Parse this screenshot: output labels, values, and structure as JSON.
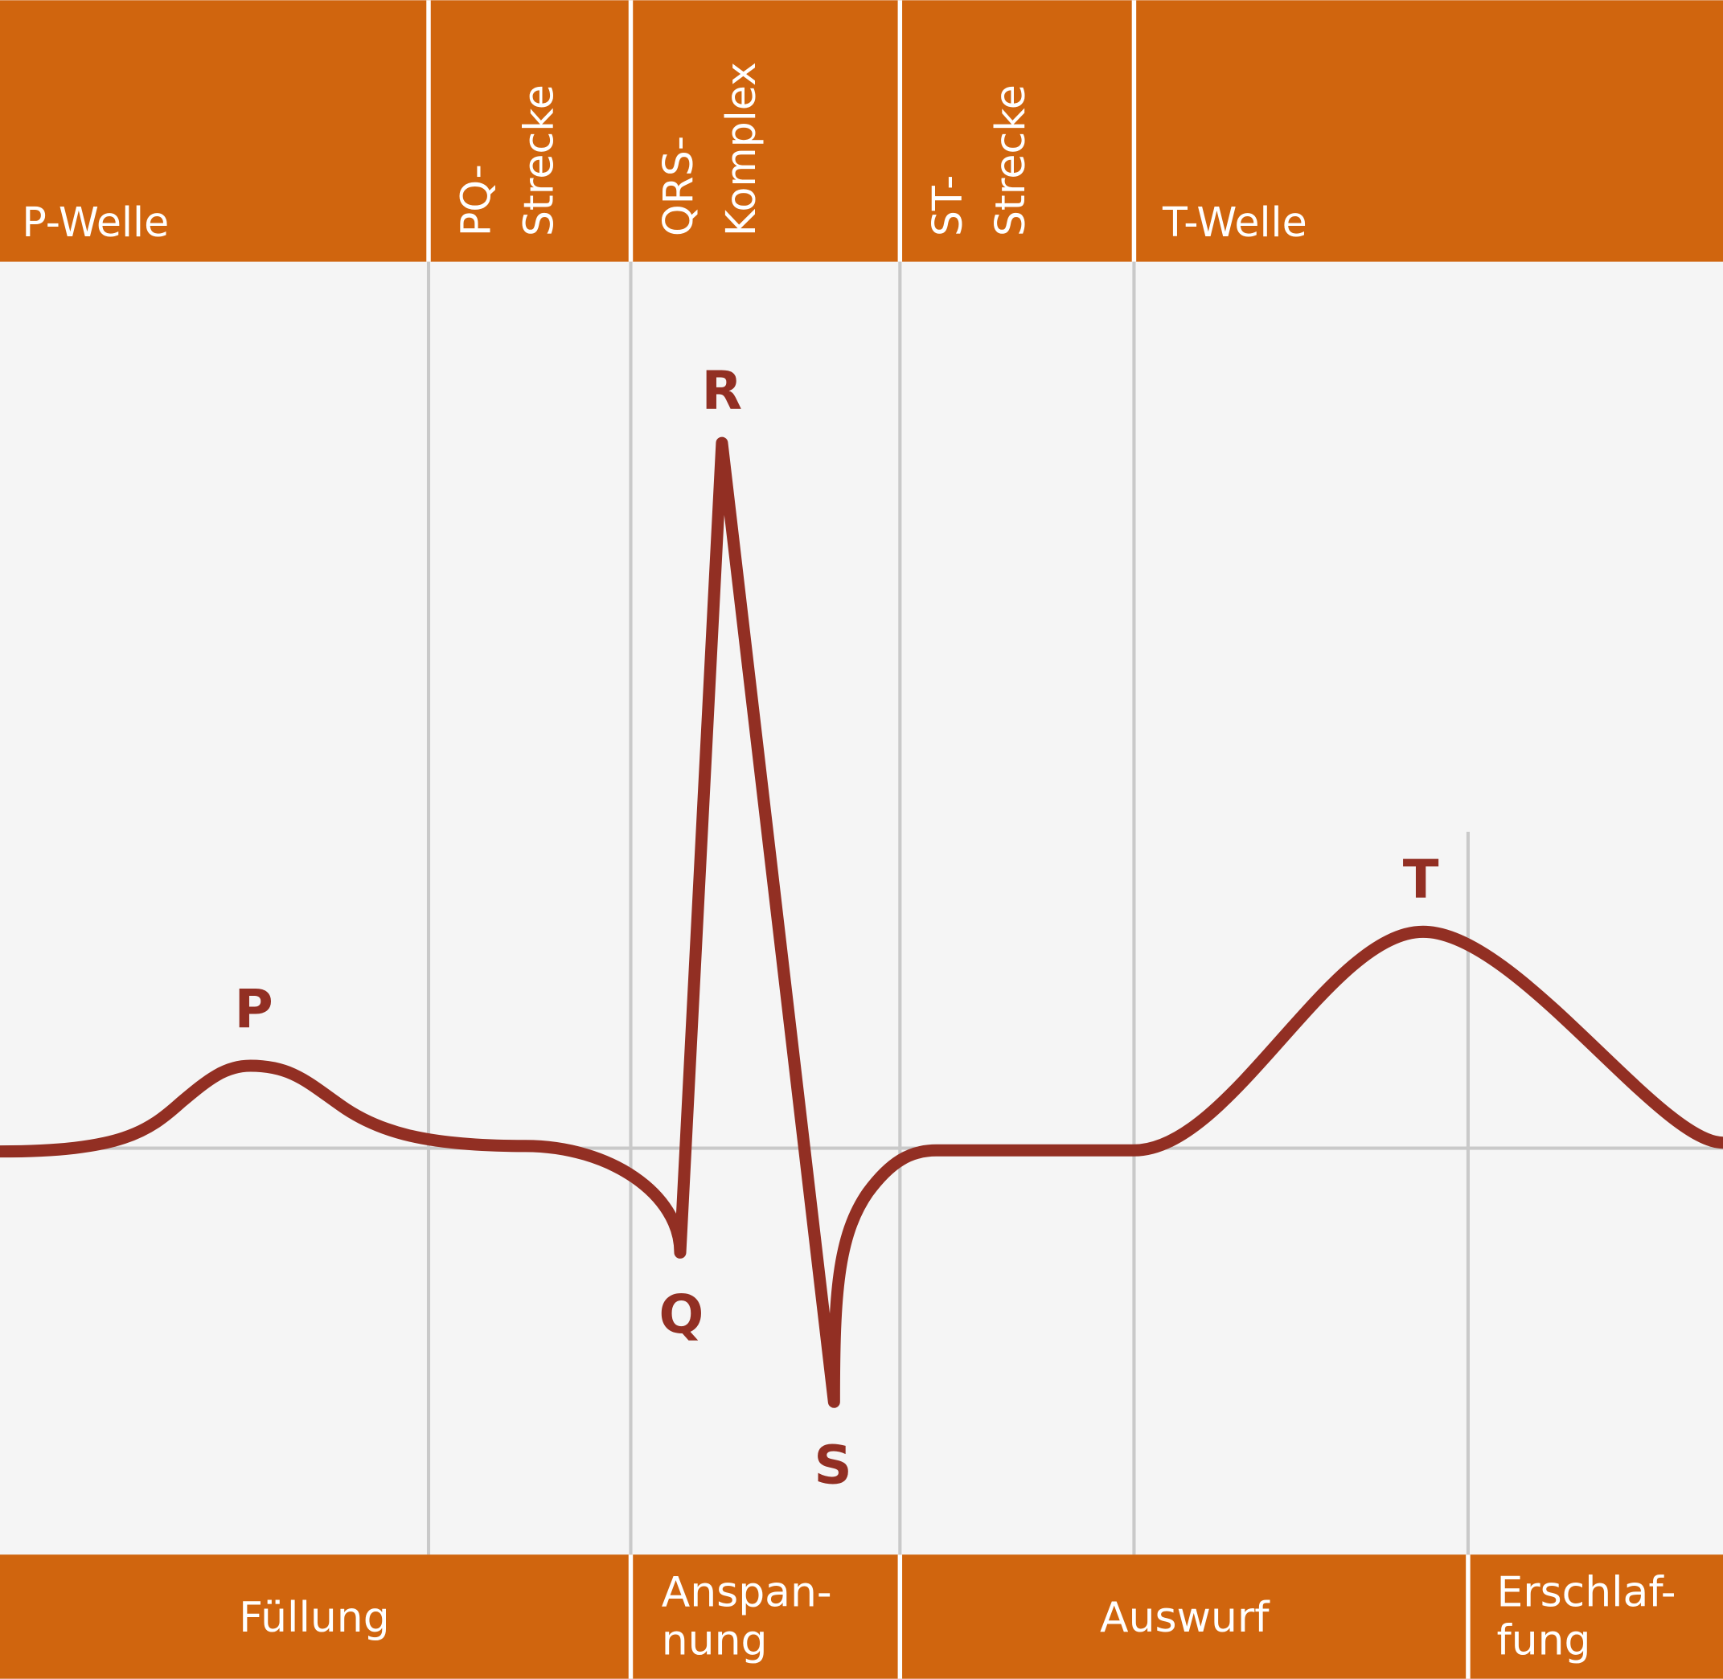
{
  "colors": {
    "band": "#D0650E",
    "curve": "#922F23",
    "background": "#F5F5F5",
    "grid": "#C9C9C9",
    "text_on_band": "#FFFFFF"
  },
  "header": {
    "p_welle": "P-Welle",
    "pq_line1": "PQ-",
    "pq_line2": "Strecke",
    "qrs_line1": "QRS-",
    "qrs_line2": "Komplex",
    "st_line1": "ST-",
    "st_line2": "Strecke",
    "t_welle": "T-Welle"
  },
  "waves": {
    "p": "P",
    "q": "Q",
    "r": "R",
    "s": "S",
    "t": "T"
  },
  "footer": {
    "fuellung": "Füllung",
    "anspannung_line1": "Anspan-",
    "anspannung_line2": "nung",
    "auswurf": "Auswurf",
    "erschlaffung_line1": "Erschlaf-",
    "erschlaffung_line2": "fung"
  }
}
